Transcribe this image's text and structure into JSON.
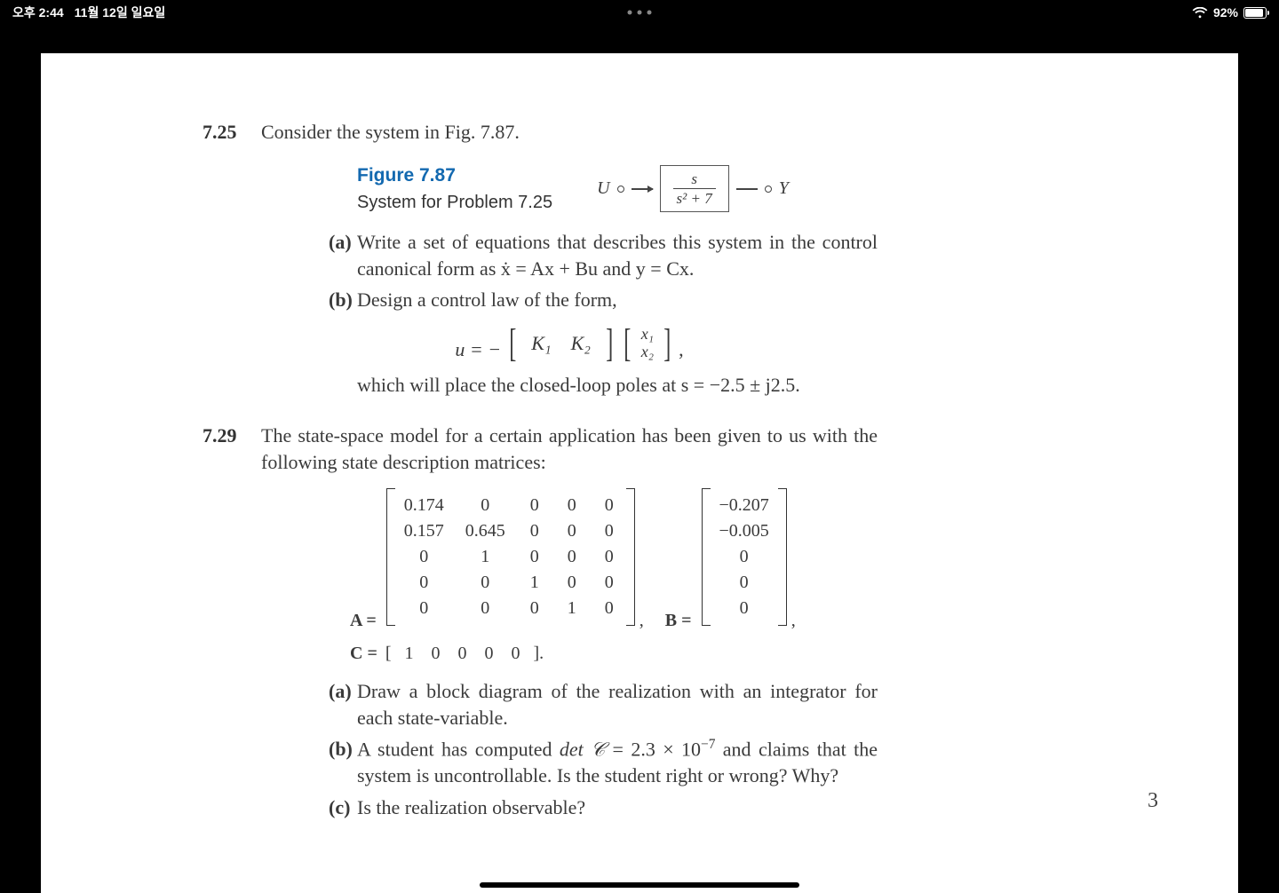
{
  "statusbar": {
    "time": "오후 2:44",
    "date": "11월 12일 일요일",
    "battery_pct_label": "92%",
    "battery_fill_pct": 92
  },
  "page": {
    "page_number": "3"
  },
  "p725": {
    "number": "7.25",
    "intro": "Consider the system in Fig. 7.87.",
    "figure": {
      "title": "Figure 7.87",
      "caption": "System for Problem 7.25",
      "u_label": "U",
      "y_label": "Y",
      "tf_num": "s",
      "tf_den": "s² + 7"
    },
    "a_label": "(a)",
    "a_text": "Write a set of equations that describes this system in the control canonical form as ẋ = Ax + Bu and y = Cx.",
    "b_label": "(b)",
    "b_text": "Design a control law of the form,",
    "eq": {
      "lhs": "u = −",
      "K1": "K₁",
      "K2": "K₂",
      "x1": "x₁",
      "x2": "x₂",
      "tail": ","
    },
    "b_after": "which will place the closed-loop poles at s = −2.5 ± j2.5."
  },
  "p729": {
    "number": "7.29",
    "intro": "The state-space model for a certain application has been given to us with the following state description matrices:",
    "A_label": "A =",
    "B_label": "B =",
    "C_label": "C =",
    "A": [
      [
        "0.174",
        "0",
        "0",
        "0",
        "0"
      ],
      [
        "0.157",
        "0.645",
        "0",
        "0",
        "0"
      ],
      [
        "0",
        "1",
        "0",
        "0",
        "0"
      ],
      [
        "0",
        "0",
        "1",
        "0",
        "0"
      ],
      [
        "0",
        "0",
        "0",
        "1",
        "0"
      ]
    ],
    "B": [
      "−0.207",
      "−0.005",
      "0",
      "0",
      "0"
    ],
    "trailing_comma": ",",
    "C": [
      "1",
      "0",
      "0",
      "0",
      "0"
    ],
    "C_end": "].",
    "a_label": "(a)",
    "a_text": "Draw a block diagram of the realization with an integrator for each state-variable.",
    "b_label": "(b)",
    "b_text_pre": "A student has computed ",
    "b_detC": "det 𝒞",
    "b_eq": " = 2.3 × 10",
    "b_exp": "−7",
    "b_text_post": " and claims that the system is uncontrollable. Is the student right or wrong? Why?",
    "c_label": "(c)",
    "c_text": "Is the realization observable?"
  },
  "colors": {
    "figure_title": "#1369b0",
    "page_bg": "#ffffff",
    "body_bg": "#000000",
    "text": "#3a3a3a"
  }
}
